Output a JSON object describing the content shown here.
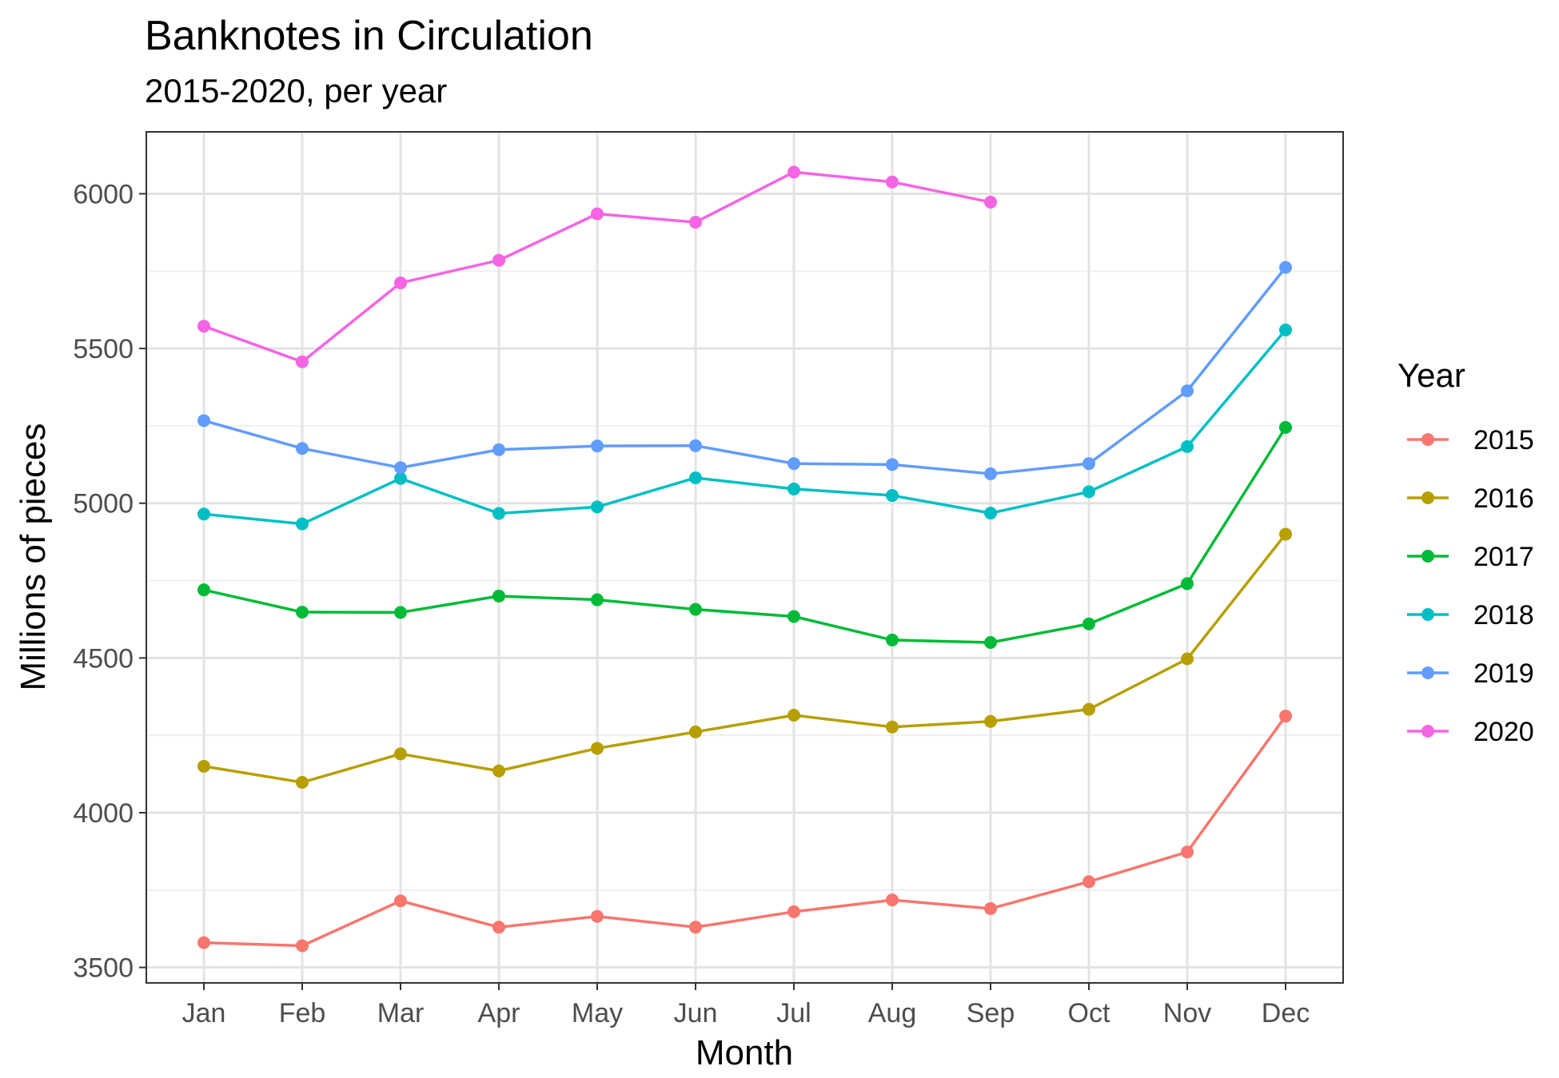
{
  "chart_data": {
    "type": "line",
    "title": "Banknotes in Circulation",
    "subtitle": "2015-2020, per year",
    "xlabel": "Month",
    "ylabel": "Millions of pieces",
    "categories": [
      "Jan",
      "Feb",
      "Mar",
      "Apr",
      "May",
      "Jun",
      "Jul",
      "Aug",
      "Sep",
      "Oct",
      "Nov",
      "Dec"
    ],
    "ylim": [
      3450,
      6200
    ],
    "yticks": [
      3500,
      4000,
      4500,
      5000,
      5500,
      6000
    ],
    "grid": true,
    "legend": {
      "title": "Year",
      "placement": "right"
    },
    "series": [
      {
        "name": "2015",
        "color": "#F8766D",
        "values": [
          3580,
          3570,
          3715,
          3630,
          3665,
          3630,
          3680,
          3718,
          3690,
          3777,
          3873,
          4312
        ]
      },
      {
        "name": "2016",
        "color": "#B79F00",
        "values": [
          4150,
          4098,
          4190,
          4135,
          4208,
          4261,
          4315,
          4277,
          4295,
          4334,
          4497,
          4900
        ]
      },
      {
        "name": "2017",
        "color": "#00BA38",
        "values": [
          4720,
          4648,
          4647,
          4700,
          4688,
          4657,
          4634,
          4558,
          4550,
          4610,
          4740,
          5245
        ]
      },
      {
        "name": "2018",
        "color": "#00BFC4",
        "values": [
          4965,
          4933,
          5080,
          4967,
          4988,
          5082,
          5046,
          5025,
          4968,
          5037,
          5183,
          5560
        ]
      },
      {
        "name": "2019",
        "color": "#619CFF",
        "values": [
          5267,
          5177,
          5115,
          5173,
          5185,
          5186,
          5128,
          5125,
          5095,
          5128,
          5363,
          5762
        ]
      },
      {
        "name": "2020",
        "color": "#F564E3",
        "values": [
          5572,
          5457,
          5712,
          5785,
          5935,
          5908,
          6070,
          6038,
          5973,
          null,
          null,
          null
        ]
      }
    ]
  }
}
